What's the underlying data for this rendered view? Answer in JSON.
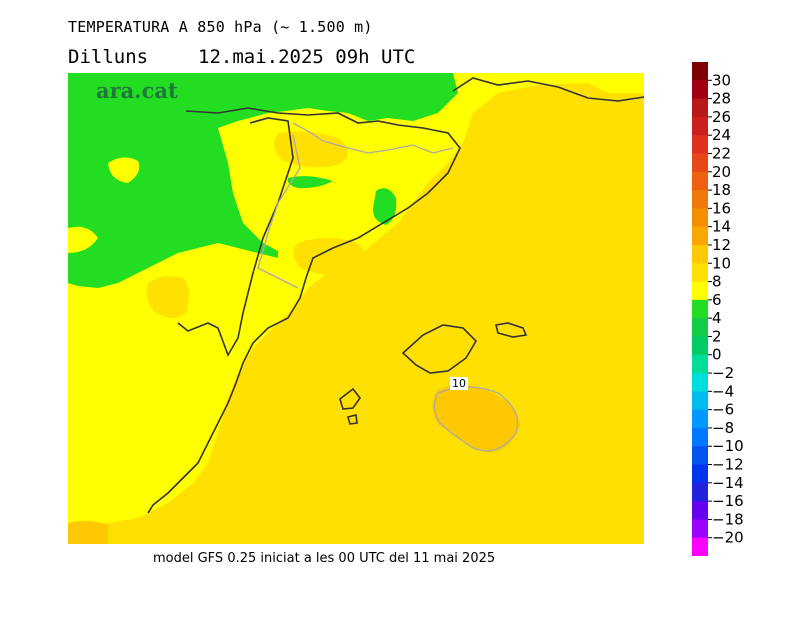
{
  "header": {
    "title": "TEMPERATURA A 850 hPa (~ 1.500 m)",
    "day": "Dilluns",
    "datetime": "12.mai.2025 09h UTC"
  },
  "brand": "ara.cat",
  "footer": "model GFS 0.25 iniciat a les 00 UTC del 11 mai 2025",
  "contour_label": "10",
  "colors": {
    "green": "#22dd22",
    "yellow": "#ffff00",
    "gold": "#ffe000",
    "orange_light": "#ffc800",
    "coast": "#333333",
    "border": "#aaaaaa"
  },
  "legend": {
    "labels": [
      "30",
      "28",
      "26",
      "24",
      "22",
      "20",
      "18",
      "16",
      "14",
      "12",
      "10",
      "8",
      "6",
      "4",
      "2",
      "0",
      "−2",
      "−4",
      "−6",
      "−8",
      "−10",
      "−12",
      "−14",
      "−16",
      "−18",
      "−20"
    ],
    "colors": [
      "#800000",
      "#a00010",
      "#b81818",
      "#cc2020",
      "#e03020",
      "#e84818",
      "#ee6010",
      "#f07808",
      "#f49000",
      "#f8a800",
      "#ffc800",
      "#ffe000",
      "#ffff00",
      "#22dd22",
      "#11cc44",
      "#00cc66",
      "#00dd99",
      "#00dddd",
      "#00bbee",
      "#0099ff",
      "#0077ff",
      "#0055ee",
      "#0033ee",
      "#2222dd",
      "#6600ee",
      "#9900ff",
      "#ff00ff"
    ]
  }
}
